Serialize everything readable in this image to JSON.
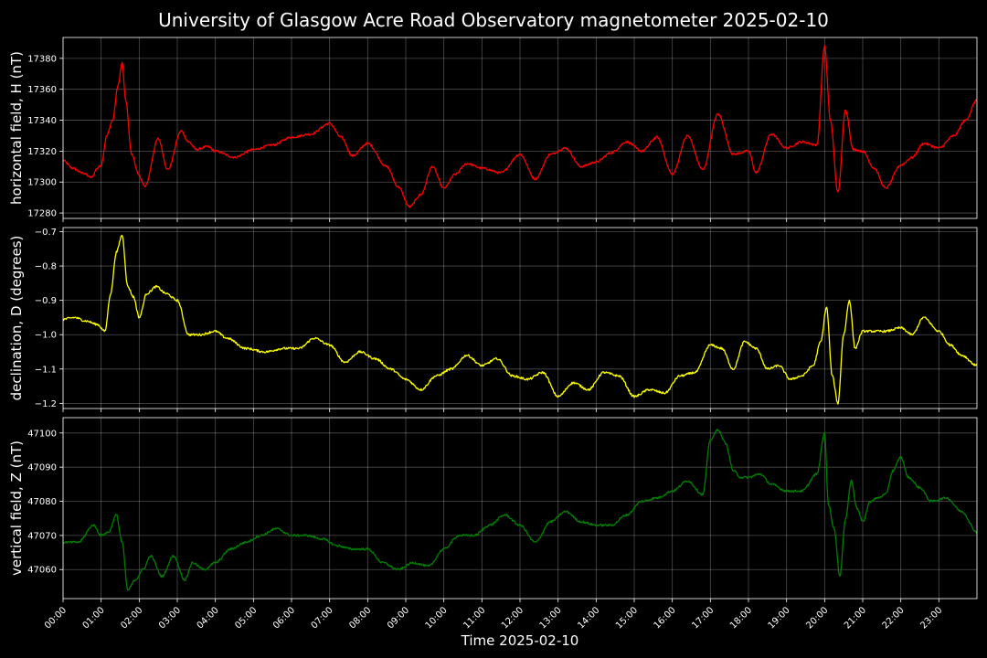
{
  "chart_data": {
    "type": "line",
    "title": "University of Glasgow Acre Road Observatory magnetometer 2025-02-10",
    "xlabel": "Time 2025-02-10",
    "xlim": [
      0,
      24
    ],
    "x_tick_labels": [
      "00:00",
      "01:00",
      "02:00",
      "03:00",
      "04:00",
      "05:00",
      "06:00",
      "07:00",
      "08:00",
      "09:00",
      "10:00",
      "11:00",
      "12:00",
      "13:00",
      "14:00",
      "15:00",
      "16:00",
      "17:00",
      "18:00",
      "19:00",
      "20:00",
      "21:00",
      "22:00",
      "23:00"
    ],
    "grid": true,
    "panels": [
      {
        "ylabel": "horizontal field, H (nT)",
        "color": "#ff0000",
        "ylim": [
          17276.5,
          17393.5
        ],
        "yticks": [
          17280,
          17300,
          17320,
          17340,
          17360,
          17380
        ],
        "ytick_labels": [
          "17280",
          "17300",
          "17320",
          "17340",
          "17360",
          "17380"
        ],
        "x": [
          0.0,
          0.25,
          0.5,
          0.75,
          0.9,
          1.0,
          1.15,
          1.3,
          1.45,
          1.55,
          1.65,
          1.8,
          2.0,
          2.15,
          2.5,
          2.75,
          3.1,
          3.3,
          3.5,
          3.8,
          4.0,
          4.5,
          5.0,
          5.5,
          6.0,
          6.5,
          7.0,
          7.3,
          7.6,
          8.0,
          8.5,
          8.8,
          9.1,
          9.4,
          9.7,
          10.0,
          10.3,
          10.6,
          11.0,
          11.5,
          12.0,
          12.4,
          12.8,
          13.2,
          13.6,
          14.0,
          14.4,
          14.8,
          15.2,
          15.6,
          16.0,
          16.4,
          16.8,
          17.2,
          17.6,
          18.0,
          18.2,
          18.6,
          19.0,
          19.4,
          19.8,
          20.0,
          20.15,
          20.35,
          20.55,
          20.75,
          21.0,
          21.3,
          21.6,
          22.0,
          22.3,
          22.6,
          23.0,
          23.4,
          23.7,
          24.0
        ],
        "y": [
          17314,
          17309,
          17306,
          17303,
          17309,
          17311,
          17330,
          17340,
          17363,
          17377,
          17352,
          17318,
          17304,
          17297,
          17328,
          17308,
          17333,
          17326,
          17321,
          17323,
          17320,
          17316,
          17321,
          17324,
          17329,
          17331,
          17338,
          17329,
          17317,
          17325,
          17310,
          17297,
          17284,
          17292,
          17310,
          17296,
          17305,
          17312,
          17309,
          17306,
          17318,
          17302,
          17318,
          17322,
          17310,
          17313,
          17319,
          17326,
          17320,
          17329,
          17305,
          17330,
          17308,
          17344,
          17318,
          17320,
          17306,
          17331,
          17322,
          17326,
          17324,
          17388,
          17340,
          17293,
          17347,
          17321,
          17320,
          17309,
          17296,
          17311,
          17316,
          17325,
          17322,
          17330,
          17340,
          17353
        ]
      },
      {
        "ylabel": "declination, D (degrees)",
        "color": "#ffff00",
        "ylim": [
          -1.215,
          -0.688
        ],
        "yticks": [
          -1.2,
          -1.1,
          -1.0,
          -0.9,
          -0.8,
          -0.7
        ],
        "ytick_labels": [
          "−1.2",
          "−1.1",
          "−1.0",
          "−0.9",
          "−0.8",
          "−0.7"
        ],
        "x": [
          0.0,
          0.3,
          0.6,
          0.9,
          1.1,
          1.25,
          1.4,
          1.55,
          1.7,
          1.85,
          2.0,
          2.2,
          2.45,
          2.7,
          3.0,
          3.3,
          3.6,
          4.0,
          4.3,
          4.8,
          5.3,
          5.8,
          6.2,
          6.6,
          7.0,
          7.4,
          7.8,
          8.2,
          8.6,
          9.0,
          9.4,
          9.8,
          10.2,
          10.6,
          11.0,
          11.4,
          11.8,
          12.2,
          12.6,
          13.0,
          13.4,
          13.8,
          14.2,
          14.6,
          15.0,
          15.4,
          15.8,
          16.2,
          16.6,
          17.0,
          17.3,
          17.6,
          17.9,
          18.2,
          18.5,
          18.8,
          19.1,
          19.4,
          19.7,
          19.9,
          20.05,
          20.2,
          20.35,
          20.5,
          20.65,
          20.8,
          21.0,
          21.3,
          21.6,
          22.0,
          22.3,
          22.6,
          23.0,
          23.3,
          23.6,
          24.0
        ],
        "y": [
          -0.955,
          -0.95,
          -0.96,
          -0.97,
          -0.99,
          -0.88,
          -0.76,
          -0.71,
          -0.86,
          -0.89,
          -0.95,
          -0.88,
          -0.86,
          -0.88,
          -0.9,
          -1.0,
          -1.0,
          -0.99,
          -1.01,
          -1.04,
          -1.05,
          -1.04,
          -1.04,
          -1.01,
          -1.03,
          -1.08,
          -1.05,
          -1.07,
          -1.1,
          -1.13,
          -1.16,
          -1.12,
          -1.1,
          -1.06,
          -1.09,
          -1.07,
          -1.12,
          -1.13,
          -1.11,
          -1.18,
          -1.14,
          -1.16,
          -1.11,
          -1.12,
          -1.18,
          -1.16,
          -1.17,
          -1.12,
          -1.11,
          -1.03,
          -1.04,
          -1.1,
          -1.02,
          -1.04,
          -1.1,
          -1.09,
          -1.13,
          -1.12,
          -1.09,
          -1.02,
          -0.92,
          -1.12,
          -1.2,
          -1.0,
          -0.9,
          -1.04,
          -0.99,
          -0.99,
          -0.99,
          -0.98,
          -1.0,
          -0.95,
          -0.99,
          -1.03,
          -1.06,
          -1.09
        ]
      },
      {
        "ylabel": "vertical field, Z (nT)",
        "color": "#007f00",
        "ylim": [
          47051.5,
          47104.5
        ],
        "yticks": [
          47060,
          47070,
          47080,
          47090,
          47100
        ],
        "ytick_labels": [
          "47060",
          "47070",
          "47080",
          "47090",
          "47100"
        ],
        "x": [
          0.0,
          0.4,
          0.8,
          1.0,
          1.2,
          1.4,
          1.55,
          1.7,
          1.9,
          2.1,
          2.3,
          2.6,
          2.9,
          3.2,
          3.4,
          3.7,
          4.0,
          4.4,
          4.8,
          5.2,
          5.6,
          6.0,
          6.4,
          6.8,
          7.2,
          7.6,
          8.0,
          8.4,
          8.8,
          9.2,
          9.6,
          10.0,
          10.4,
          10.8,
          11.2,
          11.6,
          12.0,
          12.4,
          12.8,
          13.2,
          13.6,
          14.0,
          14.4,
          14.8,
          15.2,
          15.6,
          16.0,
          16.4,
          16.8,
          17.0,
          17.2,
          17.4,
          17.6,
          17.8,
          18.0,
          18.3,
          18.6,
          19.0,
          19.4,
          19.8,
          20.0,
          20.1,
          20.25,
          20.4,
          20.55,
          20.7,
          20.85,
          21.0,
          21.2,
          21.4,
          21.6,
          21.8,
          22.0,
          22.2,
          22.5,
          22.8,
          23.2,
          23.6,
          24.0
        ],
        "y": [
          47068,
          47068,
          47073,
          47070,
          47071,
          47076,
          47068,
          47054,
          47057,
          47060,
          47064,
          47058,
          47064,
          47057,
          47062,
          47060,
          47062,
          47066,
          47068,
          47070,
          47072,
          47070,
          47070,
          47069,
          47067,
          47066,
          47066,
          47062,
          47060,
          47062,
          47061,
          47066,
          47070,
          47070,
          47073,
          47076,
          47073,
          47068,
          47074,
          47077,
          47074,
          47073,
          47073,
          47076,
          47080,
          47081,
          47083,
          47086,
          47082,
          47098,
          47101,
          47097,
          47089,
          47087,
          47087,
          47088,
          47085,
          47083,
          47083,
          47088,
          47100,
          47079,
          47072,
          47058,
          47075,
          47086,
          47078,
          47074,
          47080,
          47081,
          47082,
          47089,
          47093,
          47087,
          47084,
          47080,
          47081,
          47077,
          47071
        ]
      }
    ]
  }
}
